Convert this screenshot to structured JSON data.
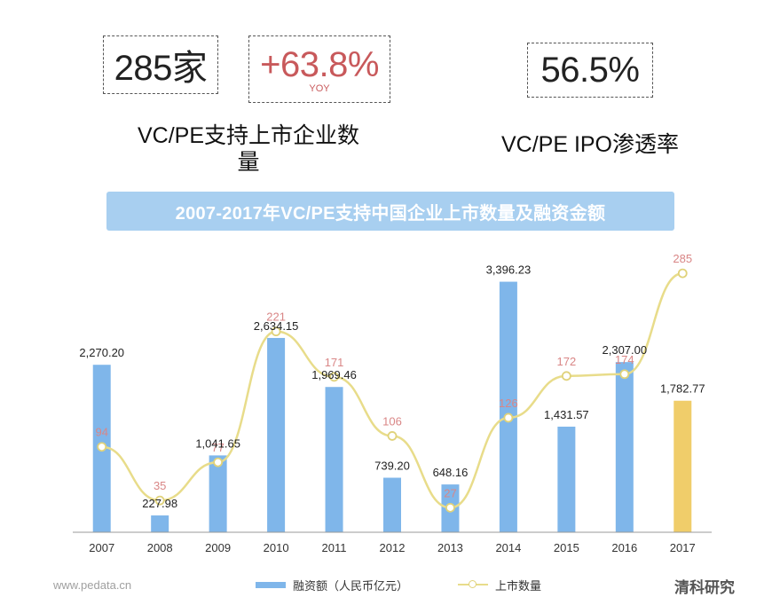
{
  "stats": {
    "count": {
      "value": "285家",
      "label": "VC/PE支持上市企业数量"
    },
    "growth": {
      "value": "+63.8%",
      "sub": "YOY"
    },
    "rate": {
      "value": "56.5%",
      "label": "VC/PE IPO渗透率"
    }
  },
  "banner": {
    "title": "2007-2017年VC/PE支持中国企业上市数量及融资金额"
  },
  "colors": {
    "bar": "#7fb6ea",
    "bar_highlight": "#f0cd6a",
    "line": "#e8dc8a",
    "line_label": "#d98686",
    "banner": "#a8cff0"
  },
  "chart_data": {
    "type": "bar",
    "categories": [
      "2007",
      "2008",
      "2009",
      "2010",
      "2011",
      "2012",
      "2013",
      "2014",
      "2015",
      "2016",
      "2017"
    ],
    "series": [
      {
        "name": "融资额（人民币亿元）",
        "type": "bar",
        "values": [
          2270.2,
          227.98,
          1041.65,
          2634.15,
          1969.46,
          739.2,
          648.16,
          3396.23,
          1431.57,
          2307.0,
          1782.77
        ],
        "labels": [
          "2,270.20",
          "227.98",
          "1,041.65",
          "2,634.15",
          "1,969.46",
          "739.20",
          "648.16",
          "3,396.23",
          "1,431.57",
          "2,307.00",
          "1,782.77"
        ],
        "highlight_index": 10
      },
      {
        "name": "上市数量",
        "type": "line",
        "values": [
          94,
          35,
          77,
          221,
          171,
          106,
          27,
          126,
          172,
          174,
          285
        ]
      }
    ],
    "title": "2007-2017年VC/PE支持中国企业上市数量及融资金额",
    "xlabel": "",
    "ylabel": "",
    "ylim_bar": [
      0,
      3800
    ],
    "ylim_line": [
      0,
      330
    ],
    "legend_position": "bottom"
  },
  "footer": {
    "source": "www.pedata.cn",
    "brand": "清科研究"
  }
}
